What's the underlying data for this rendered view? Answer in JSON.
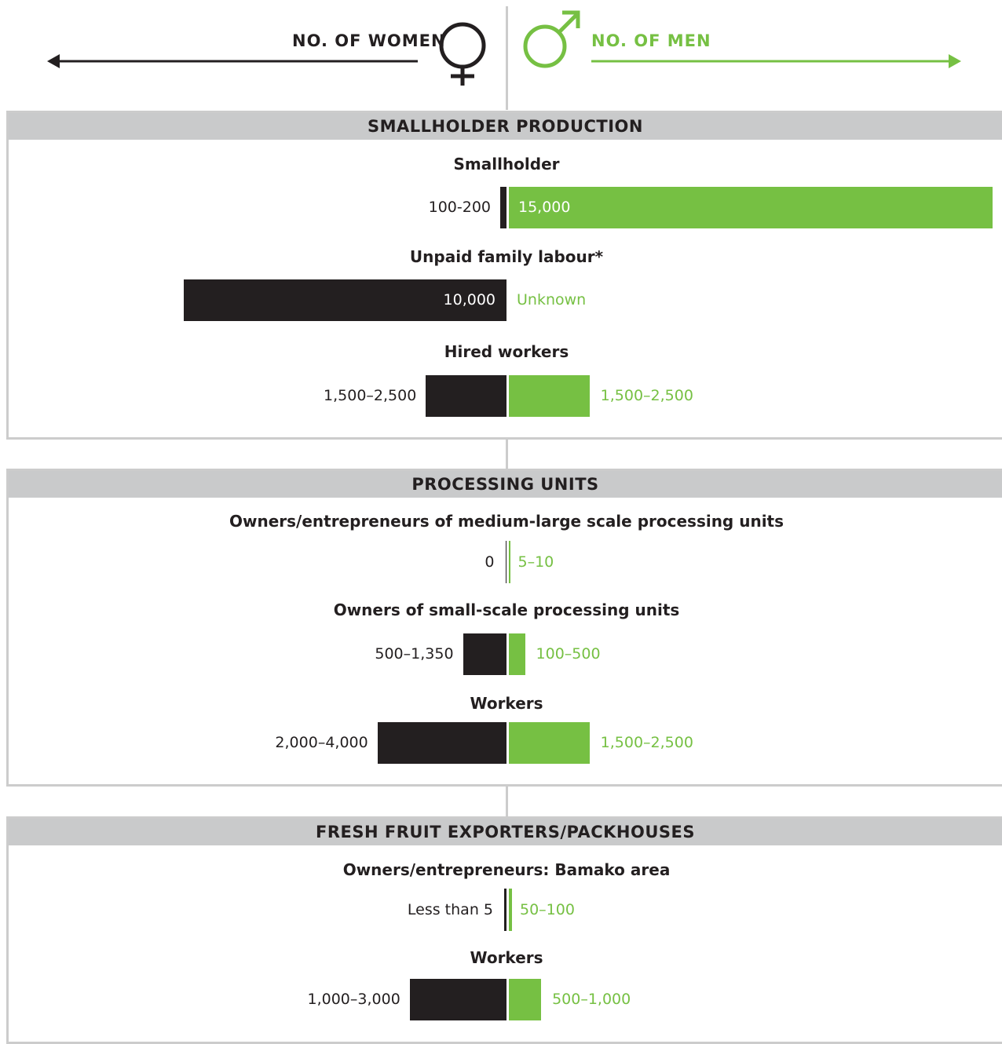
{
  "colors": {
    "women": "#231f20",
    "men": "#76c043",
    "header_bg": "#c9cacb",
    "line": "#cccccc"
  },
  "legend": {
    "women_label": "NO. OF WOMEN",
    "men_label": "NO. OF MEN",
    "women_icon": "female-symbol-icon",
    "men_icon": "male-symbol-icon"
  },
  "chart_data": {
    "type": "bar",
    "orientation": "horizontal-diverging",
    "sections": [
      {
        "title": "SMALLHOLDER PRODUCTION",
        "groups": [
          {
            "label": "Smallholder",
            "women_label": "100-200",
            "men_label": "15,000",
            "women_value": 150,
            "men_value": 15000
          },
          {
            "label": "Unpaid family labour*",
            "women_label": "10,000",
            "men_label": "Unknown",
            "women_value": 10000,
            "men_value": null
          },
          {
            "label": "Hired workers",
            "women_label": "1,500–2,500",
            "men_label": "1,500–2,500",
            "women_value": 2500,
            "men_value": 2500
          }
        ]
      },
      {
        "title": "PROCESSING UNITS",
        "groups": [
          {
            "label": "Owners/entrepreneurs of medium-large scale processing units",
            "women_label": "0",
            "men_label": "5–10",
            "women_value": 0,
            "men_value": 10
          },
          {
            "label": "Owners of small-scale processing units",
            "women_label": "500–1,350",
            "men_label": "100–500",
            "women_value": 1350,
            "men_value": 500
          },
          {
            "label": "Workers",
            "women_label": "2,000–4,000",
            "men_label": "1,500–2,500",
            "women_value": 4000,
            "men_value": 2500
          }
        ]
      },
      {
        "title": "FRESH FRUIT EXPORTERS/PACKHOUSES",
        "groups": [
          {
            "label": "Owners/entrepreneurs: Bamako area",
            "women_label": "Less than 5",
            "men_label": "50–100",
            "women_value": 5,
            "men_value": 100
          },
          {
            "label": "Workers",
            "women_label": "1,000–3,000",
            "men_label": "500–1,000",
            "women_value": 3000,
            "men_value": 1000
          }
        ]
      }
    ]
  }
}
